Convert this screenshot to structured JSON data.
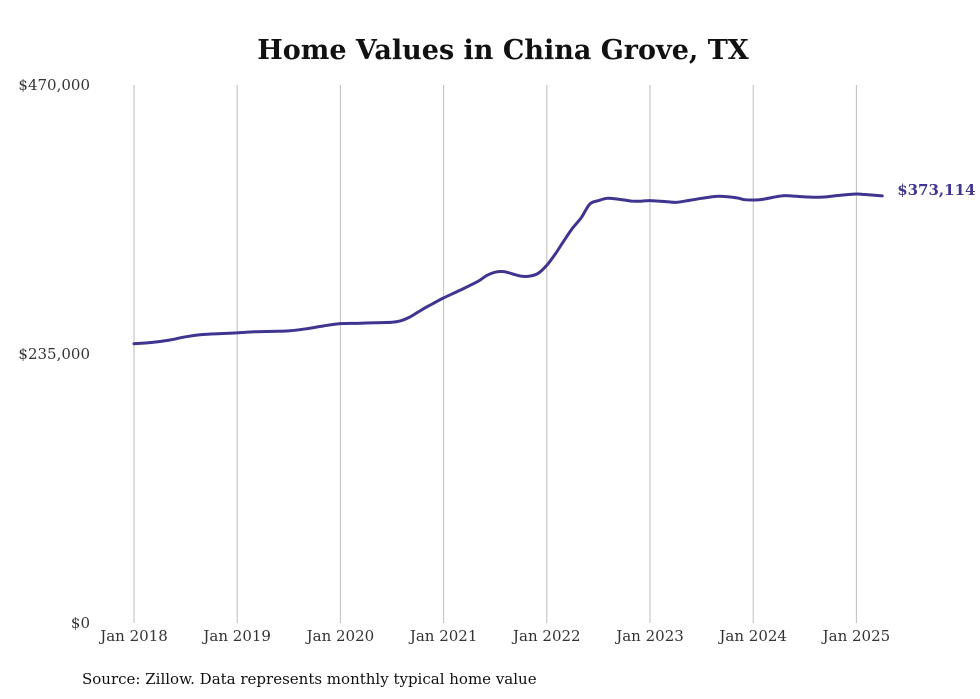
{
  "chart_data": {
    "type": "line",
    "title": "Home Values in China Grove, TX",
    "source_note": "Source: Zillow. Data represents monthly typical home value",
    "ylim": [
      0,
      470000
    ],
    "y_ticks": [
      {
        "value": 0,
        "label": "$0"
      },
      {
        "value": 235000,
        "label": "$235,000"
      },
      {
        "value": 470000,
        "label": "$470,000"
      }
    ],
    "x_range": [
      2018.0,
      2025.3
    ],
    "x_ticks": [
      {
        "value": 2018,
        "label": "Jan 2018"
      },
      {
        "value": 2019,
        "label": "Jan 2019"
      },
      {
        "value": 2020,
        "label": "Jan 2020"
      },
      {
        "value": 2021,
        "label": "Jan 2021"
      },
      {
        "value": 2022,
        "label": "Jan 2022"
      },
      {
        "value": 2023,
        "label": "Jan 2023"
      },
      {
        "value": 2024,
        "label": "Jan 2024"
      },
      {
        "value": 2025,
        "label": "Jan 2025"
      }
    ],
    "grid": "vertical",
    "series": [
      {
        "color": "#3f3590",
        "end_label": "$373,114",
        "points": [
          {
            "x": "Jan 2018",
            "y": 244000
          },
          {
            "x": "Mar 2018",
            "y": 245000
          },
          {
            "x": "May 2018",
            "y": 247000
          },
          {
            "x": "Jul 2018",
            "y": 250000
          },
          {
            "x": "Sep 2018",
            "y": 252000
          },
          {
            "x": "Nov 2018",
            "y": 252800
          },
          {
            "x": "Jan 2019",
            "y": 253500
          },
          {
            "x": "Mar 2019",
            "y": 254400
          },
          {
            "x": "May 2019",
            "y": 254800
          },
          {
            "x": "Jul 2019",
            "y": 255200
          },
          {
            "x": "Sep 2019",
            "y": 257000
          },
          {
            "x": "Nov 2019",
            "y": 259500
          },
          {
            "x": "Jan 2020",
            "y": 261500
          },
          {
            "x": "Mar 2020",
            "y": 261800
          },
          {
            "x": "May 2020",
            "y": 262300
          },
          {
            "x": "Jul 2020",
            "y": 262700
          },
          {
            "x": "Aug 2020",
            "y": 264000
          },
          {
            "x": "Sep 2020",
            "y": 267000
          },
          {
            "x": "Oct 2020",
            "y": 271500
          },
          {
            "x": "Nov 2020",
            "y": 276000
          },
          {
            "x": "Dec 2020",
            "y": 280000
          },
          {
            "x": "Jan 2021",
            "y": 284000
          },
          {
            "x": "Mar 2021",
            "y": 291000
          },
          {
            "x": "May 2021",
            "y": 298500
          },
          {
            "x": "Jun 2021",
            "y": 303500
          },
          {
            "x": "Jul 2021",
            "y": 306500
          },
          {
            "x": "Aug 2021",
            "y": 307000
          },
          {
            "x": "Sep 2021",
            "y": 305000
          },
          {
            "x": "Oct 2021",
            "y": 303000
          },
          {
            "x": "Nov 2021",
            "y": 303000
          },
          {
            "x": "Dec 2021",
            "y": 305500
          },
          {
            "x": "Jan 2022",
            "y": 312500
          },
          {
            "x": "Feb 2022",
            "y": 322500
          },
          {
            "x": "Mar 2022",
            "y": 334000
          },
          {
            "x": "Apr 2022",
            "y": 345000
          },
          {
            "x": "May 2022",
            "y": 354000
          },
          {
            "x": "Jun 2022",
            "y": 366000
          },
          {
            "x": "Jul 2022",
            "y": 369000
          },
          {
            "x": "Aug 2022",
            "y": 371000
          },
          {
            "x": "Sep 2022",
            "y": 370500
          },
          {
            "x": "Oct 2022",
            "y": 369500
          },
          {
            "x": "Nov 2022",
            "y": 368500
          },
          {
            "x": "Dec 2022",
            "y": 368500
          },
          {
            "x": "Jan 2023",
            "y": 369000
          },
          {
            "x": "Mar 2023",
            "y": 368000
          },
          {
            "x": "Apr 2023",
            "y": 367500
          },
          {
            "x": "May 2023",
            "y": 368500
          },
          {
            "x": "Jul 2023",
            "y": 371000
          },
          {
            "x": "Sep 2023",
            "y": 372800
          },
          {
            "x": "Nov 2023",
            "y": 371500
          },
          {
            "x": "Dec 2023",
            "y": 369800
          },
          {
            "x": "Jan 2024",
            "y": 369500
          },
          {
            "x": "Feb 2024",
            "y": 370000
          },
          {
            "x": "Apr 2024",
            "y": 372800
          },
          {
            "x": "May 2024",
            "y": 373300
          },
          {
            "x": "Jul 2024",
            "y": 372300
          },
          {
            "x": "Sep 2024",
            "y": 372000
          },
          {
            "x": "Nov 2024",
            "y": 373600
          },
          {
            "x": "Jan 2025",
            "y": 374800
          },
          {
            "x": "Feb 2025",
            "y": 374300
          },
          {
            "x": "Apr 2025",
            "y": 373114
          }
        ]
      }
    ]
  }
}
